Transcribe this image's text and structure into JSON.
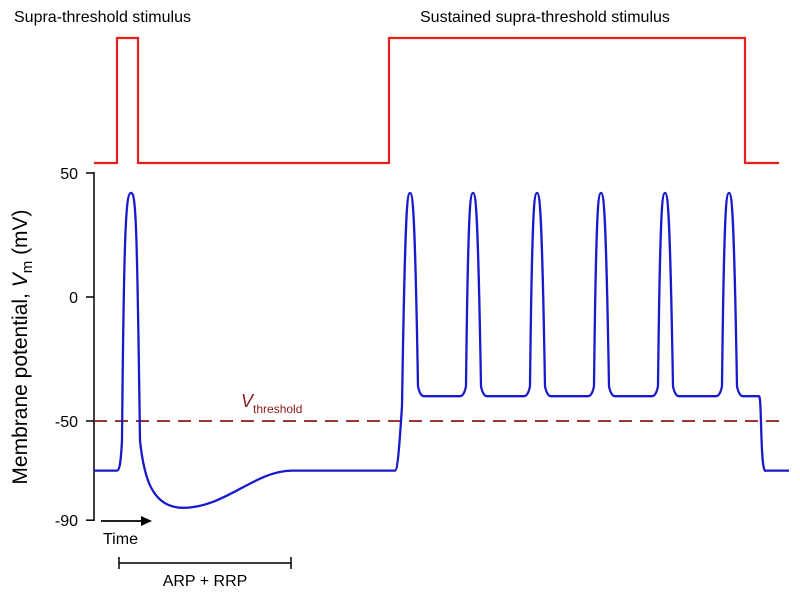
{
  "labels": {
    "stimulus_left": "Supra-threshold stimulus",
    "stimulus_right": "Sustained supra-threshold stimulus",
    "time": "Time",
    "refractory": "ARP + RRP",
    "threshold_symbol": "V",
    "threshold_subscript": "threshold",
    "axis_title_prefix": "Membrane potential,  ",
    "axis_title_symbol": "V",
    "axis_title_subscript": "m",
    "axis_title_unit": " (mV)"
  },
  "chart_data": {
    "type": "line",
    "ylabel": "Membrane potential,  Vm (mV)",
    "yticks": [
      50,
      0,
      -50,
      -90
    ],
    "ylim": [
      -90,
      50
    ],
    "series": [
      {
        "role": "stimulus",
        "color": "#e8201c"
      },
      {
        "role": "membrane potential",
        "color": "#1a1acd",
        "resting_mV": -70,
        "peak_mV": 42,
        "afterhyperpolarization_mV": -85,
        "plateau_mV": -40,
        "spikes_single": 1,
        "spikes_sustained": 6
      },
      {
        "role": "threshold",
        "color": "#8b1a1a",
        "value_mV": -50,
        "style": "dashed"
      }
    ]
  },
  "colors": {
    "stimulus": "#e8201c",
    "membrane": "#1a1acd",
    "threshold": "#8b1a1a",
    "axis": "#000000"
  }
}
